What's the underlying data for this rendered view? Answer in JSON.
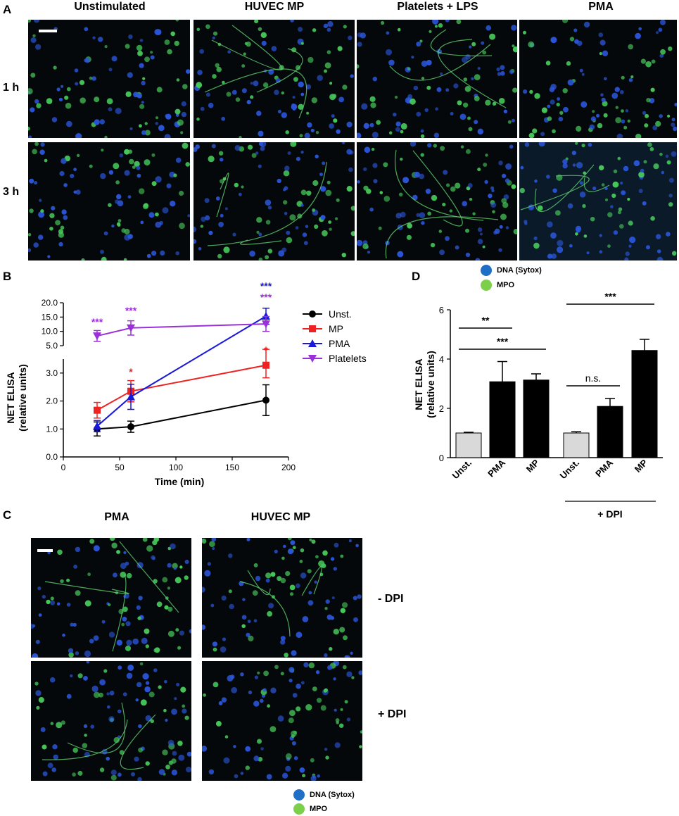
{
  "panel_a": {
    "letter": "A",
    "columns": [
      "Unstimulated",
      "HUVEC MP",
      "Platelets + LPS",
      "PMA"
    ],
    "rows": [
      "1 h",
      "3 h"
    ]
  },
  "panel_b": {
    "letter": "B"
  },
  "panel_c": {
    "letter": "C",
    "columns": [
      "PMA",
      "HUVEC MP"
    ],
    "rows": [
      "- DPI",
      "+ DPI"
    ]
  },
  "panel_d": {
    "letter": "D"
  },
  "legend": {
    "dna": "DNA (Sytox)",
    "mpo": "MPO",
    "dna_color": "#1f6fc6",
    "mpo_color": "#7ccf4a"
  },
  "chart_data": [
    {
      "panel": "B",
      "type": "line",
      "xlabel": "Time (min)",
      "ylabel": "NET ELISA (relative units)",
      "xlim": [
        0,
        200
      ],
      "xticks": [
        "0",
        "50",
        "100",
        "150",
        "200"
      ],
      "yticks_lower": [
        "0.0",
        "1.0",
        "2.0",
        "3.0"
      ],
      "yticks_upper": [
        "5.0",
        "10.0",
        "15.0",
        "20.0"
      ],
      "y_axis_broken": true,
      "x": [
        30,
        60,
        180
      ],
      "series": [
        {
          "name": "Unst.",
          "color": "#000000",
          "marker": "circle",
          "values": [
            1.0,
            1.08,
            2.03
          ],
          "err": [
            0.25,
            0.2,
            0.55
          ]
        },
        {
          "name": "MP",
          "color": "#ee2222",
          "marker": "square",
          "values": [
            1.67,
            2.35,
            3.28
          ],
          "err": [
            0.28,
            0.38,
            0.45
          ]
        },
        {
          "name": "PMA",
          "color": "#1818dd",
          "marker": "triangle-up",
          "values": [
            1.1,
            2.15,
            15.3
          ],
          "err": [
            0.2,
            0.45,
            2.8
          ]
        },
        {
          "name": "Platelets",
          "color": "#9b30d9",
          "marker": "triangle-down",
          "values": [
            8.4,
            11.2,
            12.6
          ],
          "err": [
            1.9,
            2.5,
            2.6
          ]
        }
      ],
      "annotations": [
        {
          "x": 30,
          "text": "***",
          "color": "#9b30d9"
        },
        {
          "x": 60,
          "text": "***",
          "color": "#9b30d9"
        },
        {
          "x": 60,
          "text": "*",
          "color": "#ee2222"
        },
        {
          "x": 180,
          "text": "***",
          "color": "#1818dd"
        },
        {
          "x": 180,
          "text": "***",
          "color": "#9b30d9"
        },
        {
          "x": 180,
          "text": "*",
          "color": "#ee2222"
        }
      ],
      "legend": "right"
    },
    {
      "panel": "D",
      "type": "bar",
      "ylabel": "NET ELISA (relative units)",
      "ylim": [
        0,
        6
      ],
      "yticks": [
        "0",
        "2",
        "4",
        "6"
      ],
      "categories": [
        "Unst.",
        "PMA",
        "MP",
        "Unst.",
        "PMA",
        "MP"
      ],
      "values": [
        1.0,
        3.08,
        3.15,
        1.0,
        2.08,
        4.35
      ],
      "err": [
        0.03,
        0.82,
        0.25,
        0.05,
        0.32,
        0.45
      ],
      "colors": [
        "#d9d9d9",
        "#000000",
        "#000000",
        "#d9d9d9",
        "#000000",
        "#000000"
      ],
      "group_label": "+ DPI",
      "significance": [
        {
          "from": 0,
          "to": 1,
          "text": "**"
        },
        {
          "from": 0,
          "to": 2,
          "text": "***"
        },
        {
          "from": 3,
          "to": 4,
          "text": "n.s."
        },
        {
          "from": 3,
          "to": 5,
          "text": "***"
        }
      ]
    }
  ]
}
